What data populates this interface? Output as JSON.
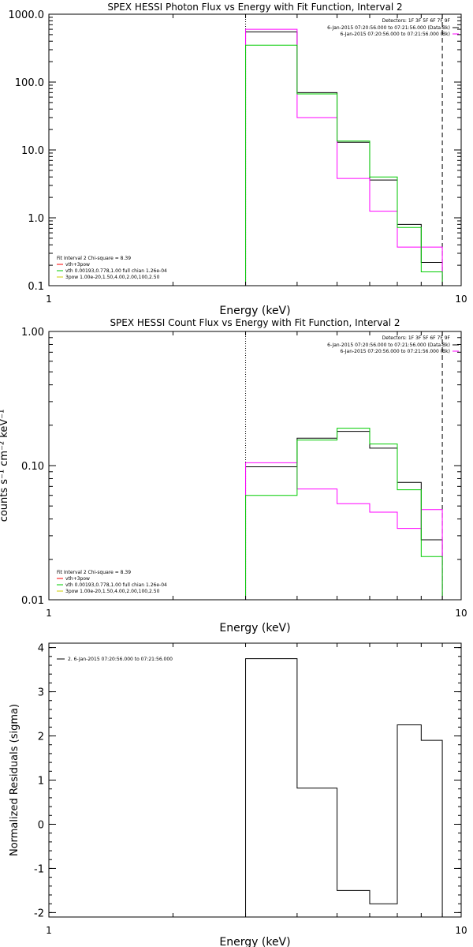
{
  "chart_data": [
    {
      "type": "line",
      "title": "SPEX HESSI Photon Flux vs Energy with Fit Function, Interval 2",
      "xlabel": "Energy (keV)",
      "ylabel": "",
      "xscale": "log",
      "yscale": "log",
      "xlim": [
        1,
        10
      ],
      "ylim": [
        0.1,
        1000
      ],
      "x_tick_labels": [
        "1",
        "10"
      ],
      "y_tick_labels": [
        "0.1",
        "1.0",
        "10.0",
        "100.0",
        "1000.0"
      ],
      "y_tick_values": [
        0.1,
        1,
        10,
        100,
        1000
      ],
      "vlines": [
        {
          "x": 3.0,
          "style": "dotted"
        },
        {
          "x": 9.0,
          "style": "dashed"
        }
      ],
      "legend_top_right": {
        "detectors": "Detectors: 1F 3F 5F 6F 7F 9F",
        "entries": [
          {
            "text": "6-Jan-2015 07:20:56.000 to 07:21:56.000 (Data-Bk)",
            "color": "#000000"
          },
          {
            "text": "6-Jan-2015 07:20:56.000 to 07:21:56.000 (Bk)",
            "color": "#ff00ff"
          }
        ]
      },
      "legend_bottom_left": {
        "header": "Fit Interval 2   Chi-square = 8.39",
        "entries": [
          {
            "text": "vth+3pow",
            "color": "#ff0000"
          },
          {
            "text": "vth 0.00193,0.778,1.00  full chian 1.26e-04",
            "color": "#00cc00"
          },
          {
            "text": "3pow 1.00e-20,1.50,4.00,2.00,100,2.50",
            "color": "#cccc00"
          }
        ]
      },
      "bin_edges": [
        3.0,
        4.0,
        5.0,
        6.0,
        7.0,
        8.0,
        9.0
      ],
      "series": [
        {
          "color": "#000000",
          "values": [
            550,
            70,
            13,
            3.6,
            0.8,
            0.22
          ]
        },
        {
          "color": "#ff00ff",
          "values": [
            600,
            30,
            3.8,
            1.25,
            0.37,
            0.37
          ]
        },
        {
          "color": "#00cc00",
          "values": [
            350,
            67,
            13.5,
            4.0,
            0.72,
            0.16
          ]
        }
      ]
    },
    {
      "type": "line",
      "title": "SPEX HESSI Count Flux vs Energy with Fit Function, Interval 2",
      "xlabel": "Energy (keV)",
      "ylabel": "counts s⁻¹ cm⁻² keV⁻¹",
      "xscale": "log",
      "yscale": "log",
      "xlim": [
        1,
        10
      ],
      "ylim": [
        0.01,
        1.0
      ],
      "x_tick_labels": [
        "1",
        "10"
      ],
      "y_tick_labels": [
        "0.01",
        "0.10",
        "1.00"
      ],
      "y_tick_values": [
        0.01,
        0.1,
        1.0
      ],
      "vlines": [
        {
          "x": 3.0,
          "style": "dotted"
        },
        {
          "x": 9.0,
          "style": "dashed"
        }
      ],
      "legend_top_right": {
        "detectors": "Detectors: 1F 3F 5F 6F 7F 9F",
        "entries": [
          {
            "text": "6-Jan-2015 07:20:56.000 to 07:21:56.000 (Data-Bk)",
            "color": "#000000"
          },
          {
            "text": "6-Jan-2015 07:20:56.000 to 07:21:56.000 (Bk)",
            "color": "#ff00ff"
          }
        ]
      },
      "legend_bottom_left": {
        "header": "Fit Interval 2   Chi-square = 8.39",
        "entries": [
          {
            "text": "vth+3pow",
            "color": "#ff0000"
          },
          {
            "text": "vth 0.00193,0.778,1.00  full chian 1.26e-04",
            "color": "#00cc00"
          },
          {
            "text": "3pow 1.00e-20,1.50,4.00,2.00,100,2.50",
            "color": "#cccc00"
          }
        ]
      },
      "bin_edges": [
        3.0,
        4.0,
        5.0,
        6.0,
        7.0,
        8.0,
        9.0
      ],
      "series": [
        {
          "color": "#000000",
          "values": [
            0.098,
            0.16,
            0.18,
            0.135,
            0.075,
            0.028
          ]
        },
        {
          "color": "#ff00ff",
          "values": [
            0.105,
            0.067,
            0.052,
            0.045,
            0.034,
            0.047
          ]
        },
        {
          "color": "#00cc00",
          "values": [
            0.06,
            0.155,
            0.19,
            0.145,
            0.066,
            0.021
          ]
        }
      ]
    },
    {
      "type": "line",
      "title": "",
      "xlabel": "Energy (keV)",
      "ylabel": "Normalized Residuals (sigma)",
      "xscale": "log",
      "yscale": "linear",
      "xlim": [
        1,
        10
      ],
      "ylim": [
        -2.1,
        4.1
      ],
      "x_tick_labels": [
        "1",
        "10"
      ],
      "y_tick_labels": [
        "-2",
        "-1",
        "0",
        "1",
        "2",
        "3",
        "4"
      ],
      "y_tick_values": [
        -2,
        -1,
        0,
        1,
        2,
        3,
        4
      ],
      "vlines": [],
      "legend_top_left": {
        "entries": [
          {
            "text": "2.  6-Jan-2015 07:20:56.000 to 07:21:56.000",
            "color": "#000000"
          }
        ]
      },
      "bin_edges": [
        3.0,
        4.0,
        5.0,
        6.0,
        7.0,
        8.0,
        9.0
      ],
      "series": [
        {
          "color": "#000000",
          "values": [
            3.75,
            0.82,
            -1.5,
            -1.8,
            2.25,
            1.9
          ]
        }
      ]
    }
  ]
}
